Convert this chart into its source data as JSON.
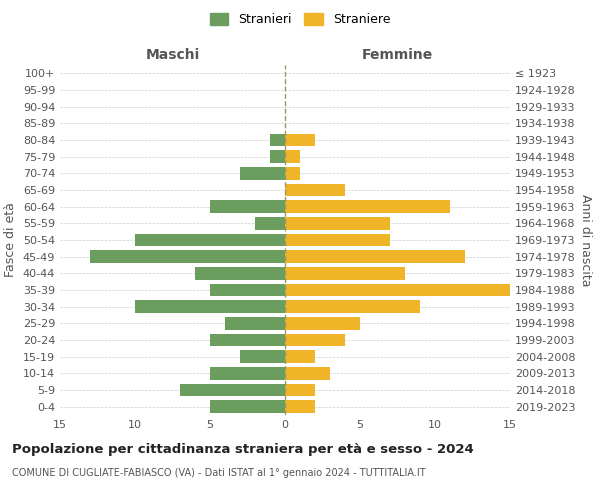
{
  "age_groups": [
    "0-4",
    "5-9",
    "10-14",
    "15-19",
    "20-24",
    "25-29",
    "30-34",
    "35-39",
    "40-44",
    "45-49",
    "50-54",
    "55-59",
    "60-64",
    "65-69",
    "70-74",
    "75-79",
    "80-84",
    "85-89",
    "90-94",
    "95-99",
    "100+"
  ],
  "birth_years": [
    "2019-2023",
    "2014-2018",
    "2009-2013",
    "2004-2008",
    "1999-2003",
    "1994-1998",
    "1989-1993",
    "1984-1988",
    "1979-1983",
    "1974-1978",
    "1969-1973",
    "1964-1968",
    "1959-1963",
    "1954-1958",
    "1949-1953",
    "1944-1948",
    "1939-1943",
    "1934-1938",
    "1929-1933",
    "1924-1928",
    "≤ 1923"
  ],
  "maschi": [
    5,
    7,
    5,
    3,
    5,
    4,
    10,
    5,
    6,
    13,
    10,
    2,
    5,
    0,
    3,
    1,
    1,
    0,
    0,
    0,
    0
  ],
  "femmine": [
    2,
    2,
    3,
    2,
    4,
    5,
    9,
    15,
    8,
    12,
    7,
    7,
    11,
    4,
    1,
    1,
    2,
    0,
    0,
    0,
    0
  ],
  "maschi_color": "#6b9e5e",
  "femmine_color": "#f0b429",
  "xlim": 15,
  "title": "Popolazione per cittadinanza straniera per età e sesso - 2024",
  "subtitle": "COMUNE DI CUGLIATE-FABIASCO (VA) - Dati ISTAT al 1° gennaio 2024 - TUTTITALIA.IT",
  "xlabel_left": "Maschi",
  "xlabel_right": "Femmine",
  "ylabel_left": "Fasce di età",
  "ylabel_right": "Anni di nascita",
  "legend_maschi": "Stranieri",
  "legend_femmine": "Straniere",
  "background_color": "#ffffff",
  "grid_color": "#cccccc",
  "center_line_color": "#999966"
}
